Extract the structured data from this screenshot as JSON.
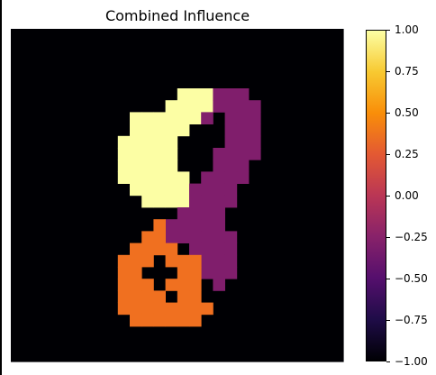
{
  "chart_data": {
    "type": "heatmap",
    "title": "Combined Influence",
    "colormap": "inferno",
    "vmin": -1.0,
    "vmax": 1.0,
    "grid_size": [
      28,
      28
    ],
    "axes_visible": false,
    "background_value": -1.0,
    "colorbar_ticks": [
      "1.00",
      "0.75",
      "0.50",
      "0.25",
      "0.00",
      "−0.25",
      "−0.50",
      "−0.75",
      "−1.00"
    ],
    "colorbar_tick_values": [
      1.0,
      0.75,
      0.5,
      0.25,
      0.0,
      -0.25,
      -0.5,
      -0.75,
      -1.0
    ],
    "colors": {
      "1.0": "#fcfea4",
      "0.5": "#f07020",
      "-0.25": "#801e6c",
      "-1.0": "#000004"
    },
    "regions": [
      {
        "value": 1.0,
        "cells": [
          [
            5,
            14
          ],
          [
            5,
            15
          ],
          [
            5,
            16
          ],
          [
            6,
            13
          ],
          [
            6,
            14
          ],
          [
            6,
            15
          ],
          [
            6,
            16
          ],
          [
            7,
            10
          ],
          [
            7,
            11
          ],
          [
            7,
            12
          ],
          [
            7,
            13
          ],
          [
            7,
            14
          ],
          [
            7,
            15
          ],
          [
            8,
            10
          ],
          [
            8,
            11
          ],
          [
            8,
            12
          ],
          [
            8,
            13
          ],
          [
            8,
            14
          ],
          [
            9,
            9
          ],
          [
            9,
            10
          ],
          [
            9,
            11
          ],
          [
            9,
            12
          ],
          [
            9,
            13
          ],
          [
            10,
            9
          ],
          [
            10,
            10
          ],
          [
            10,
            11
          ],
          [
            10,
            12
          ],
          [
            10,
            13
          ],
          [
            11,
            9
          ],
          [
            11,
            10
          ],
          [
            11,
            11
          ],
          [
            11,
            12
          ],
          [
            11,
            13
          ],
          [
            12,
            9
          ],
          [
            12,
            10
          ],
          [
            12,
            11
          ],
          [
            12,
            12
          ],
          [
            12,
            13
          ],
          [
            12,
            14
          ],
          [
            13,
            10
          ],
          [
            13,
            11
          ],
          [
            13,
            12
          ],
          [
            13,
            13
          ],
          [
            13,
            14
          ],
          [
            14,
            11
          ],
          [
            14,
            12
          ],
          [
            14,
            13
          ],
          [
            14,
            14
          ]
        ]
      },
      {
        "value": -0.25,
        "cells": [
          [
            5,
            17
          ],
          [
            5,
            18
          ],
          [
            5,
            19
          ],
          [
            6,
            17
          ],
          [
            6,
            18
          ],
          [
            6,
            19
          ],
          [
            6,
            20
          ],
          [
            7,
            16
          ],
          [
            7,
            18
          ],
          [
            7,
            19
          ],
          [
            7,
            20
          ],
          [
            8,
            18
          ],
          [
            8,
            19
          ],
          [
            8,
            20
          ],
          [
            9,
            18
          ],
          [
            9,
            19
          ],
          [
            9,
            20
          ],
          [
            10,
            17
          ],
          [
            10,
            18
          ],
          [
            10,
            19
          ],
          [
            10,
            20
          ],
          [
            11,
            17
          ],
          [
            11,
            18
          ],
          [
            11,
            19
          ],
          [
            12,
            16
          ],
          [
            12,
            17
          ],
          [
            12,
            18
          ],
          [
            12,
            19
          ],
          [
            13,
            15
          ],
          [
            13,
            16
          ],
          [
            13,
            17
          ],
          [
            13,
            18
          ],
          [
            14,
            15
          ],
          [
            14,
            16
          ],
          [
            14,
            17
          ],
          [
            14,
            18
          ],
          [
            15,
            14
          ],
          [
            15,
            15
          ],
          [
            15,
            16
          ],
          [
            15,
            17
          ],
          [
            16,
            13
          ],
          [
            16,
            14
          ],
          [
            16,
            15
          ],
          [
            16,
            16
          ],
          [
            16,
            17
          ],
          [
            17,
            13
          ],
          [
            17,
            14
          ],
          [
            17,
            15
          ],
          [
            17,
            16
          ],
          [
            17,
            17
          ],
          [
            17,
            18
          ],
          [
            18,
            15
          ],
          [
            18,
            16
          ],
          [
            18,
            17
          ],
          [
            18,
            18
          ],
          [
            19,
            16
          ],
          [
            19,
            17
          ],
          [
            19,
            18
          ],
          [
            20,
            16
          ],
          [
            20,
            17
          ],
          [
            20,
            18
          ],
          [
            21,
            17
          ]
        ]
      },
      {
        "value": 0.5,
        "cells": [
          [
            16,
            12
          ],
          [
            17,
            11
          ],
          [
            17,
            12
          ],
          [
            18,
            10
          ],
          [
            18,
            11
          ],
          [
            18,
            12
          ],
          [
            18,
            13
          ],
          [
            19,
            9
          ],
          [
            19,
            10
          ],
          [
            19,
            11
          ],
          [
            19,
            13
          ],
          [
            19,
            14
          ],
          [
            19,
            15
          ],
          [
            20,
            9
          ],
          [
            20,
            10
          ],
          [
            20,
            14
          ],
          [
            20,
            15
          ],
          [
            21,
            9
          ],
          [
            21,
            10
          ],
          [
            21,
            11
          ],
          [
            21,
            13
          ],
          [
            21,
            14
          ],
          [
            21,
            15
          ],
          [
            22,
            9
          ],
          [
            22,
            10
          ],
          [
            22,
            11
          ],
          [
            22,
            12
          ],
          [
            22,
            14
          ],
          [
            22,
            15
          ],
          [
            23,
            9
          ],
          [
            23,
            10
          ],
          [
            23,
            11
          ],
          [
            23,
            12
          ],
          [
            23,
            13
          ],
          [
            23,
            14
          ],
          [
            23,
            15
          ],
          [
            23,
            16
          ],
          [
            24,
            10
          ],
          [
            24,
            11
          ],
          [
            24,
            12
          ],
          [
            24,
            13
          ],
          [
            24,
            14
          ],
          [
            24,
            15
          ]
        ]
      }
    ]
  }
}
